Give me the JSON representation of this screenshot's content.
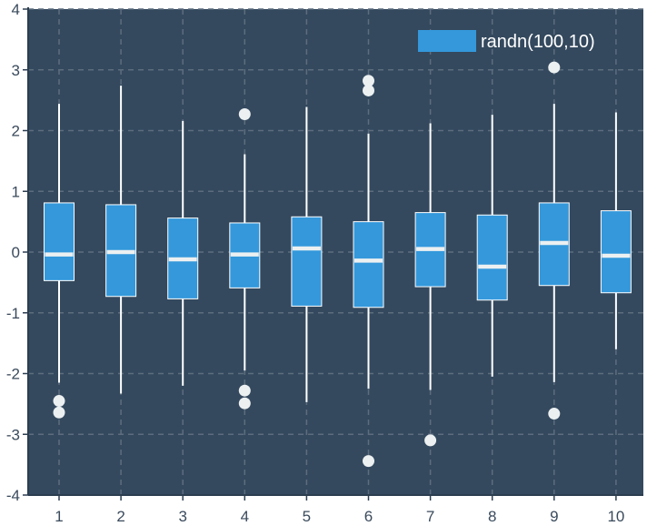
{
  "chart_data": {
    "type": "box",
    "title": "",
    "xlabel": "",
    "ylabel": "",
    "categories": [
      "1",
      "2",
      "3",
      "4",
      "5",
      "6",
      "7",
      "8",
      "9",
      "10"
    ],
    "ylim": [
      -4,
      4
    ],
    "yticks": [
      "-4",
      "-3",
      "-2",
      "-1",
      "0",
      "1",
      "2",
      "3",
      "4"
    ],
    "grid": true,
    "legend": {
      "position": "top-right",
      "label": "randn(100,10)"
    },
    "series": [
      {
        "name": "randn(100,10)",
        "boxes": [
          {
            "whisker_low": -2.15,
            "q1": -0.47,
            "median": -0.04,
            "q3": 0.81,
            "whisker_high": 2.44,
            "outliers": [
              -2.45,
              -2.64
            ]
          },
          {
            "whisker_low": -2.33,
            "q1": -0.73,
            "median": 0.0,
            "q3": 0.78,
            "whisker_high": 2.74,
            "outliers": []
          },
          {
            "whisker_low": -2.2,
            "q1": -0.77,
            "median": -0.12,
            "q3": 0.56,
            "whisker_high": 2.16,
            "outliers": []
          },
          {
            "whisker_low": -1.95,
            "q1": -0.59,
            "median": -0.04,
            "q3": 0.48,
            "whisker_high": 1.61,
            "outliers": [
              2.27,
              -2.28,
              -2.49
            ]
          },
          {
            "whisker_low": -2.47,
            "q1": -0.89,
            "median": 0.06,
            "q3": 0.58,
            "whisker_high": 2.39,
            "outliers": []
          },
          {
            "whisker_low": -2.25,
            "q1": -0.91,
            "median": -0.14,
            "q3": 0.5,
            "whisker_high": 1.95,
            "outliers": [
              2.82,
              2.66,
              -3.44
            ]
          },
          {
            "whisker_low": -2.27,
            "q1": -0.57,
            "median": 0.05,
            "q3": 0.65,
            "whisker_high": 2.12,
            "outliers": [
              -3.1
            ]
          },
          {
            "whisker_low": -2.05,
            "q1": -0.79,
            "median": -0.24,
            "q3": 0.61,
            "whisker_high": 2.26,
            "outliers": []
          },
          {
            "whisker_low": -2.14,
            "q1": -0.55,
            "median": 0.15,
            "q3": 0.81,
            "whisker_high": 2.44,
            "outliers": [
              3.04,
              -2.66
            ]
          },
          {
            "whisker_low": -1.6,
            "q1": -0.67,
            "median": -0.06,
            "q3": 0.68,
            "whisker_high": 2.3,
            "outliers": []
          }
        ]
      }
    ],
    "colors": {
      "plot_background": "#34495e",
      "box_fill": "#3498db",
      "box_edge": "#ffffff",
      "median": "#ecf0f1",
      "whisker": "#ffffff",
      "outlier": "#ecf0f1",
      "grid": "#5d6d7e",
      "axis": "#2c3e50",
      "tick_text": "#3a4a5c"
    }
  }
}
